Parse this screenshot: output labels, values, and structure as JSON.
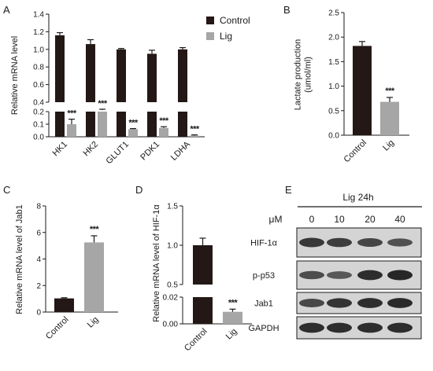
{
  "colors": {
    "control": "#231815",
    "lig": "#a6a6a6",
    "axis": "#1a1a1a",
    "blot_band": "#1e1e1e",
    "blot_bg": "#d4d4d4"
  },
  "chart_data": [
    {
      "panel": "A",
      "type": "bar",
      "ylabel": "Relative mRNA level",
      "broken_axis": true,
      "ylim_lower": [
        0,
        0.2
      ],
      "ylim_upper": [
        0.4,
        1.4
      ],
      "yticks_lower": [
        "0.0",
        "0.1",
        "0.2"
      ],
      "yticks_upper": [
        "0.4",
        "0.6",
        "0.8",
        "1.0",
        "1.2",
        "1.4"
      ],
      "categories": [
        "HK1",
        "HK2",
        "GLUT1",
        "PDK1",
        "LDHA"
      ],
      "legend_position": "top-right",
      "series": [
        {
          "name": "Control",
          "values": [
            1.16,
            1.06,
            1.0,
            0.95,
            1.0
          ],
          "errors": [
            0.03,
            0.05,
            0.01,
            0.04,
            0.02
          ]
        },
        {
          "name": "Lig",
          "values": [
            0.1,
            0.31,
            0.06,
            0.07,
            0.01
          ],
          "errors": [
            0.04,
            0.01,
            0.005,
            0.01,
            0.005
          ]
        }
      ],
      "significance": [
        "***",
        "***",
        "***",
        "***",
        "***"
      ]
    },
    {
      "panel": "B",
      "type": "bar",
      "ylabel": "Lactate production\n(umol/ml)",
      "ylim": [
        0,
        2.5
      ],
      "yticks": [
        "0.0",
        "0.5",
        "1.0",
        "1.5",
        "2.0",
        "2.5"
      ],
      "categories": [
        "Control",
        "Lig"
      ],
      "values": [
        1.82,
        0.68
      ],
      "errors": [
        0.09,
        0.09
      ],
      "significance": [
        "",
        "***"
      ]
    },
    {
      "panel": "C",
      "type": "bar",
      "ylabel": "Relative mRNA  level of Jab1",
      "ylim": [
        0,
        8
      ],
      "yticks": [
        "0",
        "2",
        "4",
        "6",
        "8"
      ],
      "categories": [
        "Control",
        "Lig"
      ],
      "values": [
        1.03,
        5.25
      ],
      "errors": [
        0.05,
        0.5
      ],
      "significance": [
        "",
        "***"
      ]
    },
    {
      "panel": "D",
      "type": "bar",
      "ylabel": "Relative mRNA level of  HIF-1α",
      "broken_axis": true,
      "ylim_lower": [
        0,
        0.02
      ],
      "ylim_upper": [
        0.5,
        1.5
      ],
      "yticks_lower": [
        "0.00",
        "0.02"
      ],
      "yticks_upper": [
        "0.5",
        "1.0",
        "1.5"
      ],
      "categories": [
        "Control",
        "Lig"
      ],
      "values": [
        1.0,
        0.009
      ],
      "errors": [
        0.09,
        0.002
      ],
      "significance": [
        "",
        "***"
      ]
    }
  ],
  "panels": {
    "A": {
      "letter": "A"
    },
    "B": {
      "letter": "B"
    },
    "C": {
      "letter": "C"
    },
    "D": {
      "letter": "D"
    },
    "E": {
      "letter": "E",
      "title": "Lig 24h",
      "unit": "μM",
      "doses": [
        "0",
        "10",
        "20",
        "40"
      ],
      "rows": [
        {
          "label": "HIF-1α",
          "intensity": [
            0.85,
            0.8,
            0.72,
            0.62
          ]
        },
        {
          "label": "p-p53",
          "intensity": [
            0.65,
            0.55,
            0.95,
            1.0
          ]
        },
        {
          "label": "Jab1",
          "intensity": [
            0.7,
            0.9,
            0.95,
            0.97
          ]
        },
        {
          "label": "GAPDH",
          "intensity": [
            0.95,
            0.95,
            0.95,
            0.95
          ]
        }
      ]
    }
  }
}
